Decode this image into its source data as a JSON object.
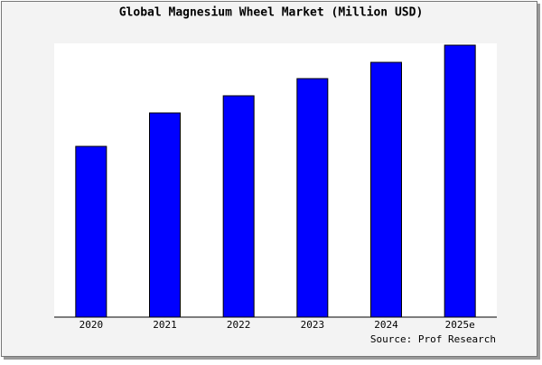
{
  "chart_data": {
    "type": "bar",
    "title": "Global Magnesium Wheel Market (Million USD)",
    "categories": [
      "2020",
      "2021",
      "2022",
      "2023",
      "2024",
      "2025e"
    ],
    "values": [
      189,
      226,
      245,
      264,
      282,
      301
    ],
    "color": "#0000ff",
    "ylim": [
      0,
      303
    ],
    "source": "Source: Prof Research"
  }
}
